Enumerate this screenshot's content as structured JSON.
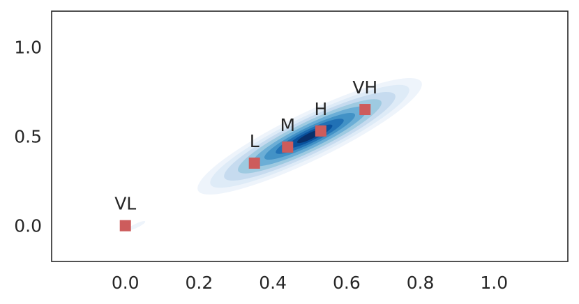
{
  "chart_data": {
    "type": "scatter",
    "title": "",
    "xlabel": "",
    "ylabel": "",
    "xlim": [
      -0.2,
      1.2
    ],
    "ylim": [
      -0.2,
      1.2
    ],
    "grid": false,
    "x_ticks": [
      0.0,
      0.2,
      0.4,
      0.6,
      0.8,
      1.0
    ],
    "x_tick_labels": [
      "0.0",
      "0.2",
      "0.4",
      "0.6",
      "0.8",
      "1.0"
    ],
    "y_ticks": [
      0.0,
      0.5,
      1.0
    ],
    "y_tick_labels": [
      "0.0",
      "0.5",
      "1.0"
    ],
    "points": [
      {
        "label": "VL",
        "x": 0.0,
        "y": 0.0
      },
      {
        "label": "L",
        "x": 0.35,
        "y": 0.35
      },
      {
        "label": "M",
        "x": 0.44,
        "y": 0.44
      },
      {
        "label": "H",
        "x": 0.53,
        "y": 0.53
      },
      {
        "label": "VH",
        "x": 0.65,
        "y": 0.65
      }
    ],
    "marker_color": "#cd5c5c",
    "density": {
      "kind": "kde-contours",
      "colormap": "Blues",
      "center": [
        0.5,
        0.5
      ]
    }
  }
}
